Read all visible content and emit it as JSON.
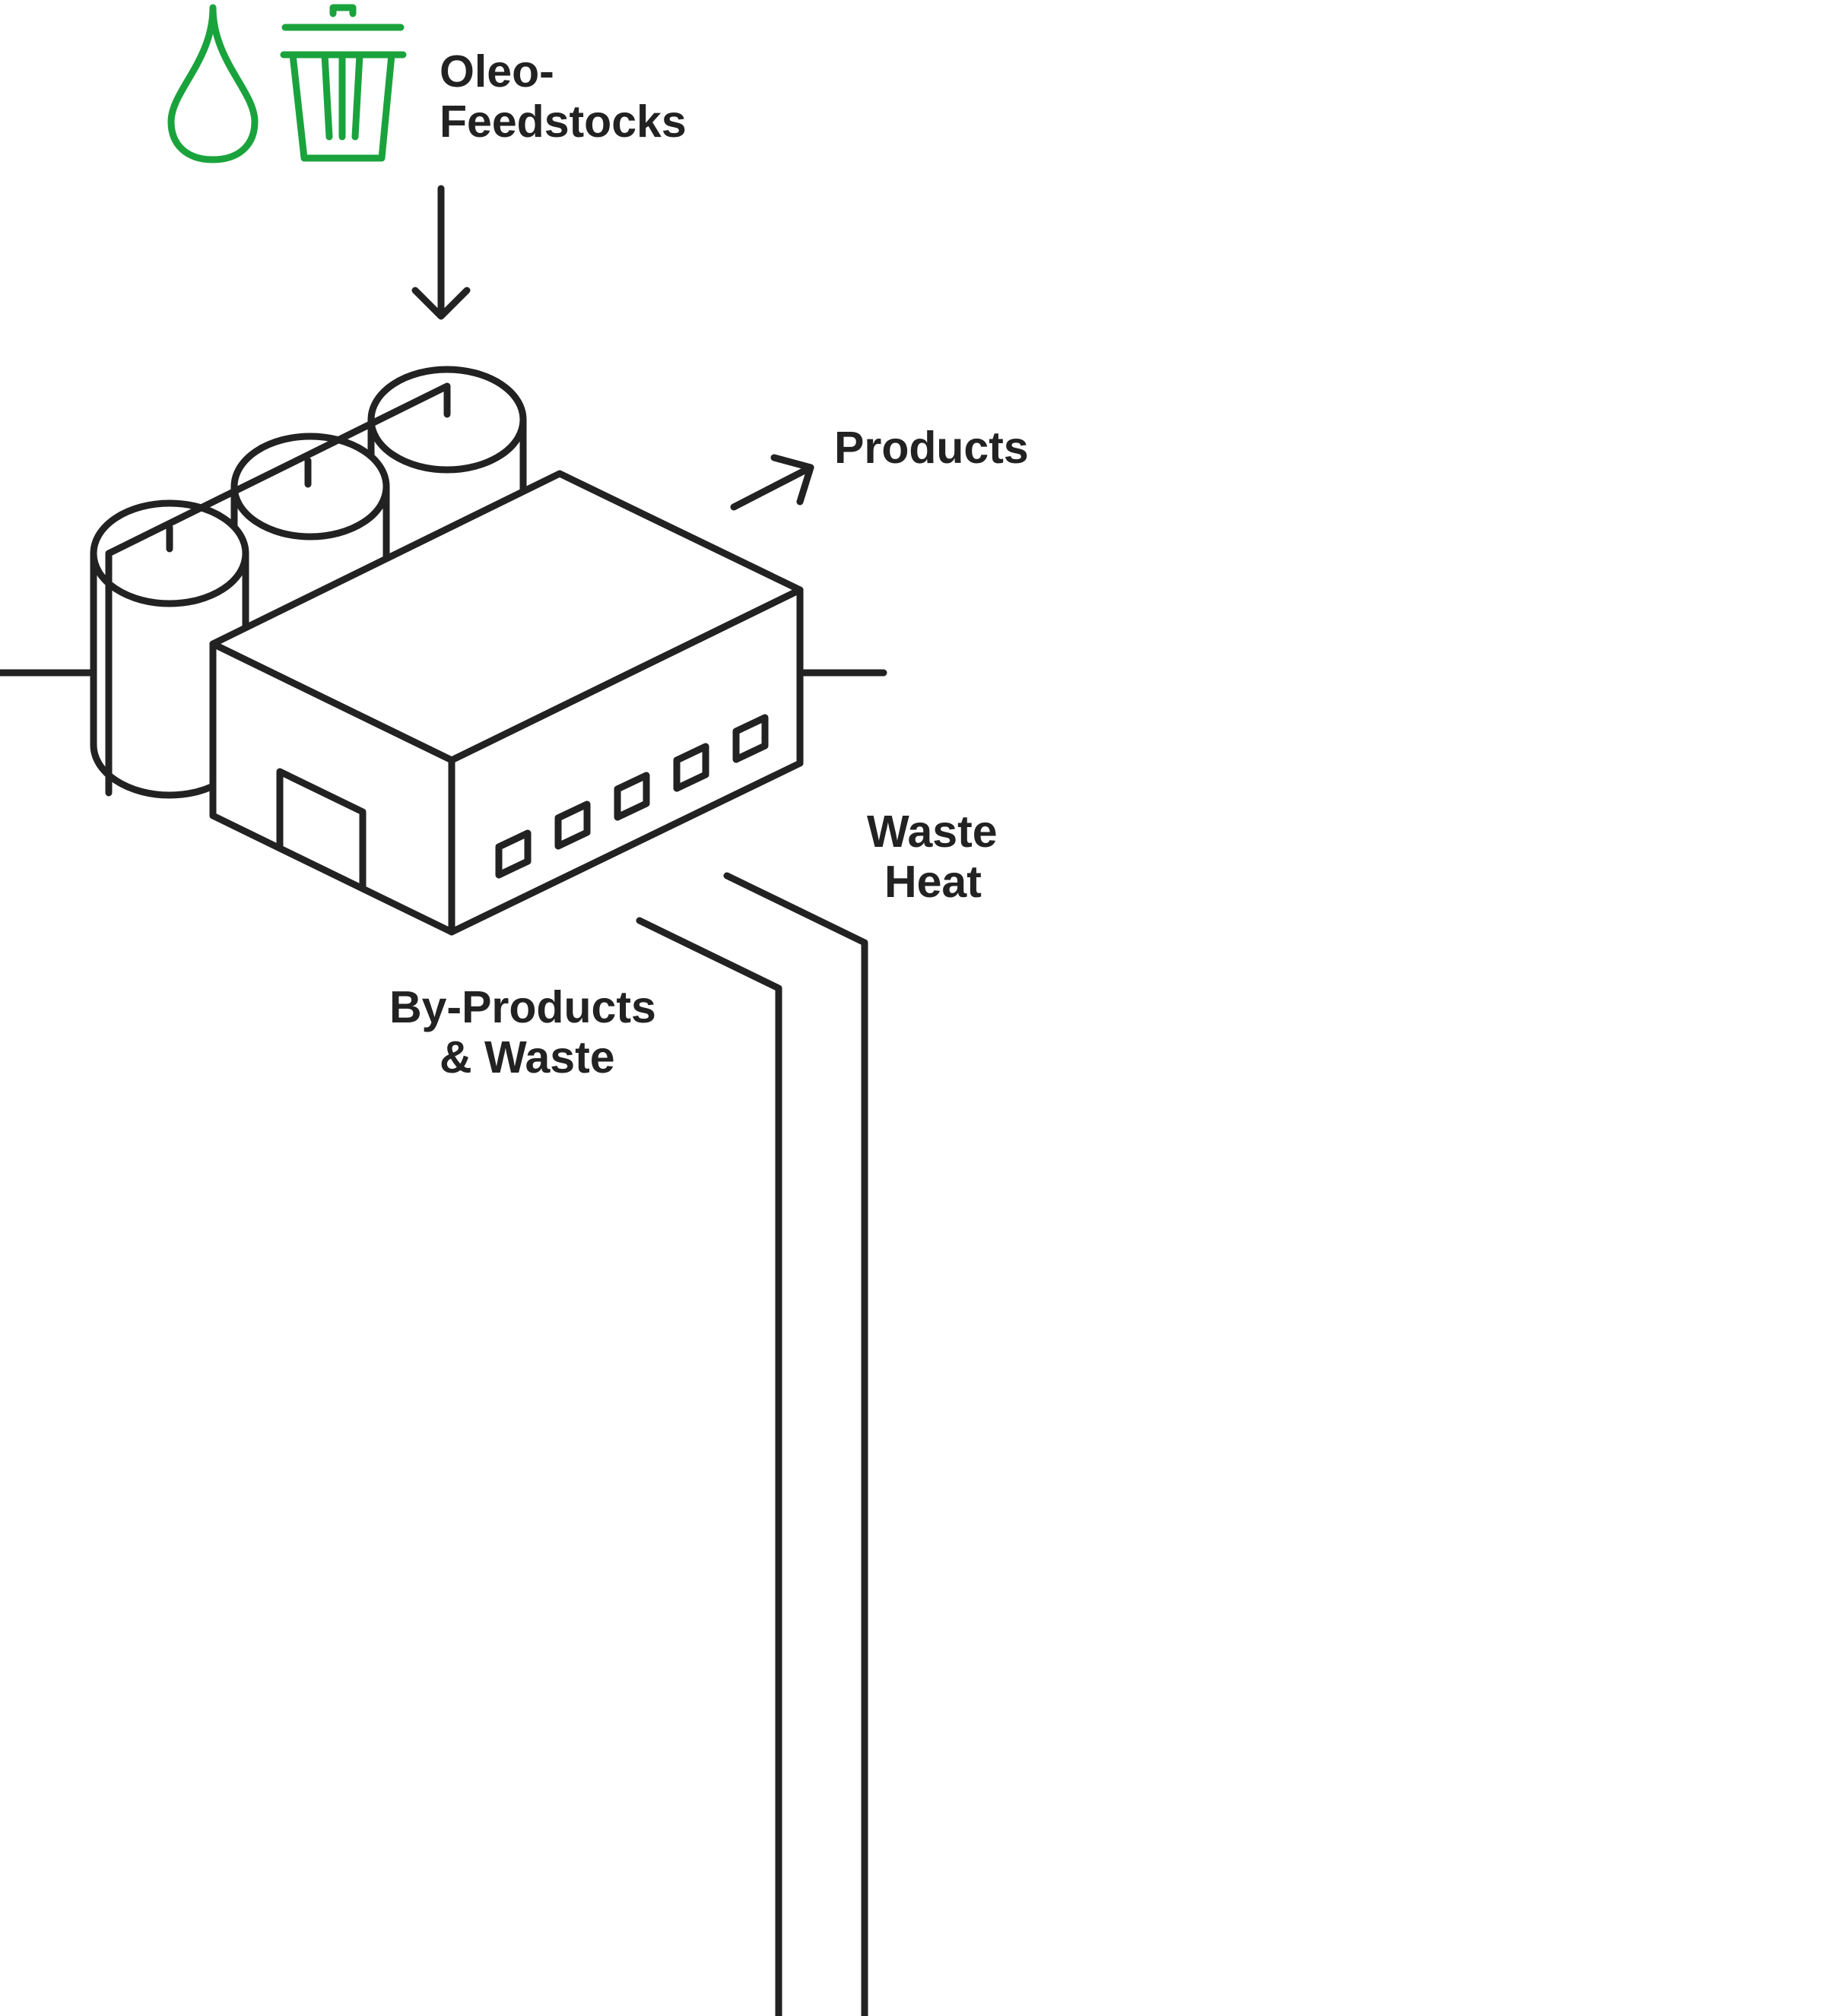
{
  "labels": {
    "feedstock_line1": "Oleo-",
    "feedstock_line2": "Feedstocks",
    "products": "Products",
    "waste_heat_line1": "Waste",
    "waste_heat_line2": "Heat",
    "byproducts_line1": "By-Products",
    "byproducts_line2": "& Waste"
  },
  "icons": {
    "droplet": "droplet-icon",
    "trash": "trash-can-icon"
  },
  "colors": {
    "line": "#222222",
    "accent": "#1aa33c",
    "background": "#ffffff"
  }
}
